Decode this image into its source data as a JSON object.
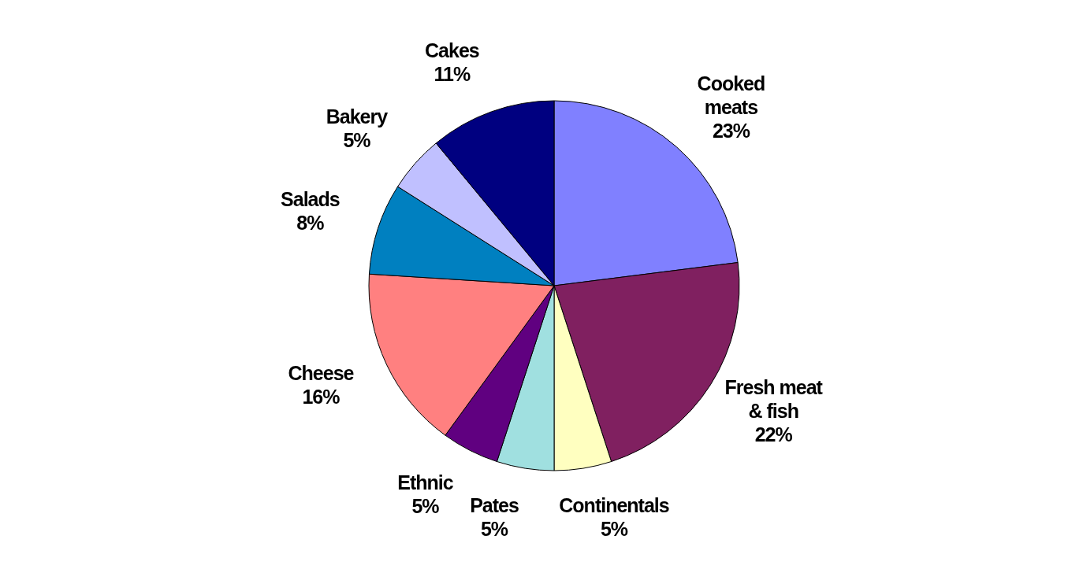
{
  "chart_data": {
    "type": "pie",
    "categories": [
      "Cooked meats",
      "Fresh meat & fish",
      "Continentals",
      "Pates",
      "Ethnic",
      "Cheese",
      "Salads",
      "Bakery",
      "Cakes"
    ],
    "values": [
      23,
      22,
      5,
      5,
      5,
      16,
      8,
      5,
      11
    ],
    "value_labels": [
      "23%",
      "22%",
      "5%",
      "5%",
      "5%",
      "16%",
      "8%",
      "5%",
      "11%"
    ],
    "colors": [
      "#8080ff",
      "#802060",
      "#ffffc0",
      "#a0e0e0",
      "#600080",
      "#ff8080",
      "#0080c0",
      "#c0c0ff",
      "#000080"
    ],
    "legend": false
  }
}
